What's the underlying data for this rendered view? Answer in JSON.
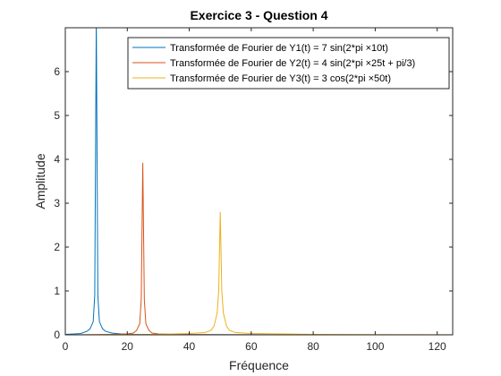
{
  "chart_data": {
    "type": "line",
    "title": "Exercice 3 - Question 4",
    "xlabel": "Fréquence",
    "ylabel": "Amplitude",
    "xlim": [
      0,
      125
    ],
    "ylim": [
      0,
      7
    ],
    "xticks": [
      0,
      20,
      40,
      60,
      80,
      100,
      120
    ],
    "yticks": [
      0,
      1,
      2,
      3,
      4,
      5,
      6
    ],
    "grid": false,
    "legend_position": "top-right",
    "series": [
      {
        "name": "Transformée de Fourier de Y1(t) = 7 sin(2*pi ×10t)",
        "color": "#0072BD",
        "x": [
          0,
          3,
          5,
          7,
          8,
          9,
          9.5,
          10,
          10.5,
          11,
          12,
          13,
          15,
          18,
          22,
          30,
          40,
          60,
          80,
          100,
          125
        ],
        "y": [
          0.01,
          0.02,
          0.03,
          0.08,
          0.14,
          0.3,
          0.9,
          7.2,
          0.9,
          0.3,
          0.14,
          0.08,
          0.04,
          0.02,
          0.01,
          0.006,
          0.004,
          0.002,
          0.001,
          0.001,
          0
        ]
      },
      {
        "name": "Transformée de Fourier de Y2(t) = 4 sin(2*pi ×25t + pi/3)",
        "color": "#D95319",
        "x": [
          0,
          10,
          15,
          20,
          22,
          23,
          24,
          24.5,
          25,
          25.5,
          26,
          27,
          28,
          30,
          35,
          40,
          60,
          80,
          100,
          125
        ],
        "y": [
          0.001,
          0.005,
          0.01,
          0.02,
          0.04,
          0.1,
          0.25,
          0.8,
          3.92,
          0.8,
          0.25,
          0.1,
          0.04,
          0.02,
          0.01,
          0.005,
          0.002,
          0.001,
          0.001,
          0
        ]
      },
      {
        "name": "Transformée de Fourier de Y3(t) = 3 cos(2*pi ×50t)",
        "color": "#EDB120",
        "x": [
          0,
          10,
          20,
          30,
          40,
          45,
          47,
          48,
          49,
          49.5,
          50,
          50.5,
          51,
          52,
          53,
          55,
          60,
          80,
          100,
          125
        ],
        "y": [
          0.001,
          0.003,
          0.006,
          0.01,
          0.03,
          0.05,
          0.1,
          0.2,
          0.5,
          1.0,
          2.8,
          1.0,
          0.5,
          0.2,
          0.1,
          0.05,
          0.03,
          0.01,
          0.005,
          0.002
        ]
      }
    ]
  }
}
